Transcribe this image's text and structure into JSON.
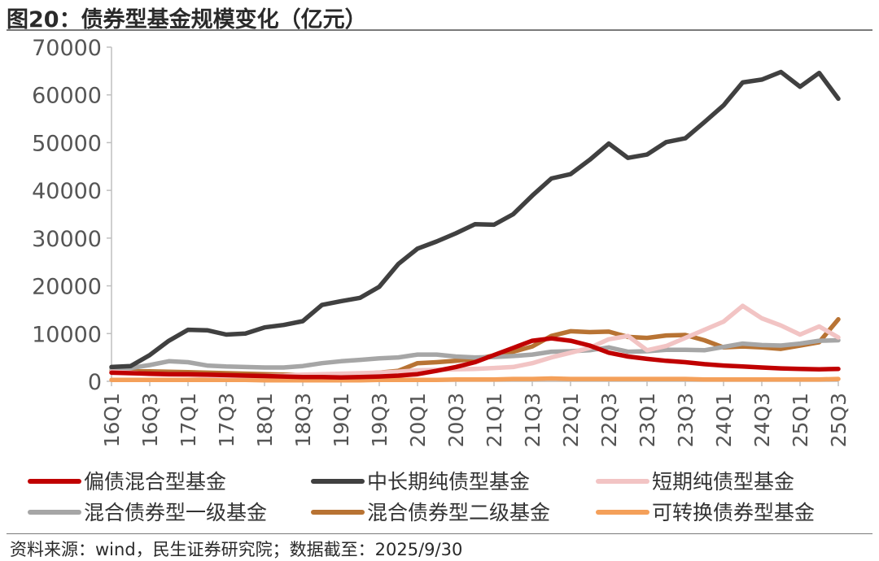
{
  "header": {
    "title": "图20：债券型基金规模变化（亿元）"
  },
  "footer": {
    "source": "资料来源：wind，民生证券研究院；数据截至：2025/9/30"
  },
  "chart_data": {
    "type": "line",
    "title": "图20：债券型基金规模变化（亿元）",
    "xlabel": "",
    "ylabel": "",
    "ylim": [
      0,
      70000
    ],
    "yticks": [
      0,
      10000,
      20000,
      30000,
      40000,
      50000,
      60000,
      70000
    ],
    "x": [
      "16Q1",
      "16Q2",
      "16Q3",
      "16Q4",
      "17Q1",
      "17Q2",
      "17Q3",
      "17Q4",
      "18Q1",
      "18Q2",
      "18Q3",
      "18Q4",
      "19Q1",
      "19Q2",
      "19Q3",
      "19Q4",
      "20Q1",
      "20Q2",
      "20Q3",
      "20Q4",
      "21Q1",
      "21Q2",
      "21Q3",
      "21Q4",
      "22Q1",
      "22Q2",
      "22Q3",
      "22Q4",
      "23Q1",
      "23Q2",
      "23Q3",
      "23Q4",
      "24Q1",
      "24Q2",
      "24Q3",
      "24Q4",
      "25Q1",
      "25Q2",
      "25Q3"
    ],
    "xtick_labels": [
      "16Q1",
      "16Q3",
      "17Q1",
      "17Q3",
      "18Q1",
      "18Q3",
      "19Q1",
      "19Q3",
      "20Q1",
      "20Q3",
      "21Q1",
      "21Q3",
      "22Q1",
      "22Q3",
      "23Q1",
      "23Q3",
      "24Q1",
      "24Q3",
      "25Q1",
      "25Q3"
    ],
    "grid": false,
    "legend_position": "bottom",
    "series": [
      {
        "name": "偏债混合型基金",
        "color": "#c00000",
        "values": [
          1800,
          1700,
          1600,
          1500,
          1500,
          1400,
          1300,
          1200,
          1100,
          1000,
          900,
          900,
          800,
          900,
          1000,
          1200,
          1500,
          2200,
          3000,
          4000,
          5500,
          7000,
          8500,
          9000,
          8500,
          7500,
          6000,
          5200,
          4700,
          4300,
          4000,
          3600,
          3300,
          3100,
          2900,
          2700,
          2600,
          2500,
          2600
        ]
      },
      {
        "name": "中长期纯债型基金",
        "color": "#404040",
        "values": [
          3000,
          3200,
          5500,
          8500,
          10800,
          10700,
          9800,
          10000,
          11300,
          11800,
          12600,
          16000,
          16800,
          17500,
          19800,
          24600,
          27800,
          29300,
          31000,
          32900,
          32800,
          35000,
          38900,
          42500,
          43400,
          46400,
          49800,
          46800,
          47500,
          50100,
          50900,
          54300,
          57800,
          62600,
          63200,
          64800,
          61700,
          64600,
          59200
        ]
      },
      {
        "name": "短期纯债型基金",
        "color": "#f2c4c4",
        "values": [
          2000,
          1800,
          1500,
          1400,
          1300,
          1200,
          1100,
          1100,
          1100,
          1200,
          1400,
          1500,
          1600,
          1700,
          1800,
          2000,
          2300,
          2400,
          2500,
          2600,
          2800,
          3000,
          3800,
          5000,
          6000,
          7000,
          8800,
          9500,
          6500,
          7400,
          9100,
          10800,
          12500,
          15800,
          13200,
          11700,
          9800,
          11500,
          9200
        ]
      },
      {
        "name": "混合债券型一级基金",
        "color": "#a6a6a6",
        "values": [
          2700,
          2800,
          3400,
          4200,
          4000,
          3300,
          3100,
          3000,
          2900,
          2900,
          3200,
          3800,
          4200,
          4500,
          4800,
          5000,
          5600,
          5600,
          5200,
          5000,
          5100,
          5300,
          5600,
          6200,
          6300,
          6500,
          7100,
          6200,
          6300,
          6600,
          6600,
          6500,
          7200,
          7900,
          7600,
          7500,
          7900,
          8500,
          8600
        ]
      },
      {
        "name": "混合债券型二级基金",
        "color": "#b87333",
        "values": [
          2200,
          2100,
          2100,
          2000,
          1900,
          1800,
          1700,
          1600,
          1500,
          1400,
          1300,
          1300,
          1500,
          1600,
          1800,
          2200,
          3800,
          4000,
          4300,
          4700,
          5400,
          6200,
          7300,
          9500,
          10500,
          10300,
          10400,
          9300,
          9100,
          9600,
          9700,
          8600,
          7100,
          7300,
          7100,
          6800,
          7500,
          8200,
          13000
        ]
      },
      {
        "name": "可转换债券型基金",
        "color": "#f4a05a",
        "values": [
          300,
          300,
          300,
          300,
          300,
          300,
          300,
          300,
          200,
          200,
          200,
          200,
          200,
          200,
          300,
          300,
          300,
          300,
          400,
          400,
          400,
          500,
          500,
          600,
          500,
          500,
          500,
          500,
          500,
          500,
          500,
          400,
          400,
          400,
          400,
          400,
          400,
          400,
          500
        ]
      }
    ]
  }
}
